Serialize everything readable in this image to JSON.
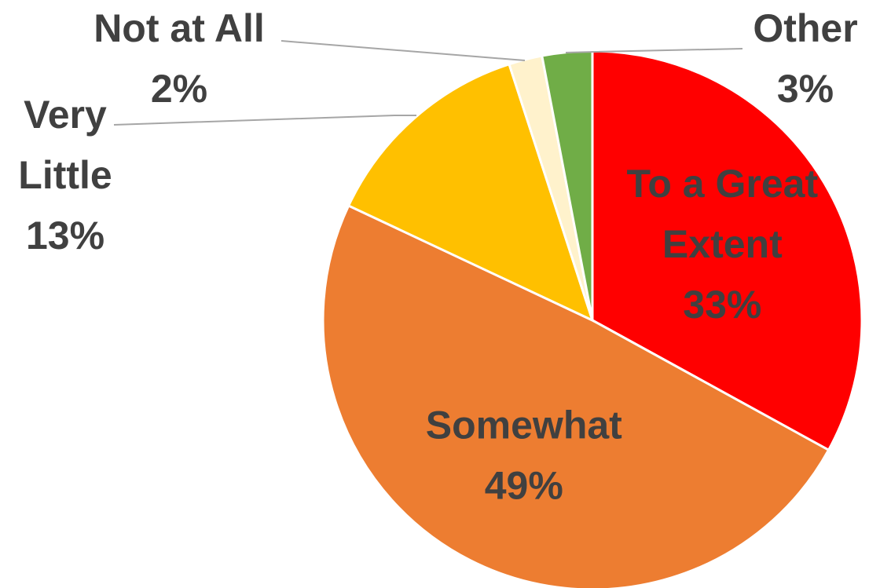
{
  "chart_data": {
    "type": "pie",
    "slices": [
      {
        "name": "To a Great Extent",
        "value": 33,
        "display": "33%",
        "color": "#ff0000",
        "label_lines": [
          "To a Great",
          "Extent",
          "33%"
        ],
        "label_placement": "inside"
      },
      {
        "name": "Somewhat",
        "value": 49,
        "display": "49%",
        "color": "#ed7d31",
        "label_lines": [
          "Somewhat",
          "49%"
        ],
        "label_placement": "inside"
      },
      {
        "name": "Very Little",
        "value": 13,
        "display": "13%",
        "color": "#ffc000",
        "label_lines": [
          "Very",
          "Little",
          "13%"
        ],
        "label_placement": "outside-left"
      },
      {
        "name": "Not at All",
        "value": 2,
        "display": "2%",
        "color": "#fff2cc",
        "label_lines": [
          "Not at All",
          "2%"
        ],
        "label_placement": "outside-top"
      },
      {
        "name": "Other",
        "value": 3,
        "display": "3%",
        "color": "#70ad47",
        "label_lines": [
          "Other",
          "3%"
        ],
        "label_placement": "outside-top-right"
      }
    ],
    "start_angle": "12 o'clock",
    "direction": "clockwise",
    "legend": "none"
  }
}
